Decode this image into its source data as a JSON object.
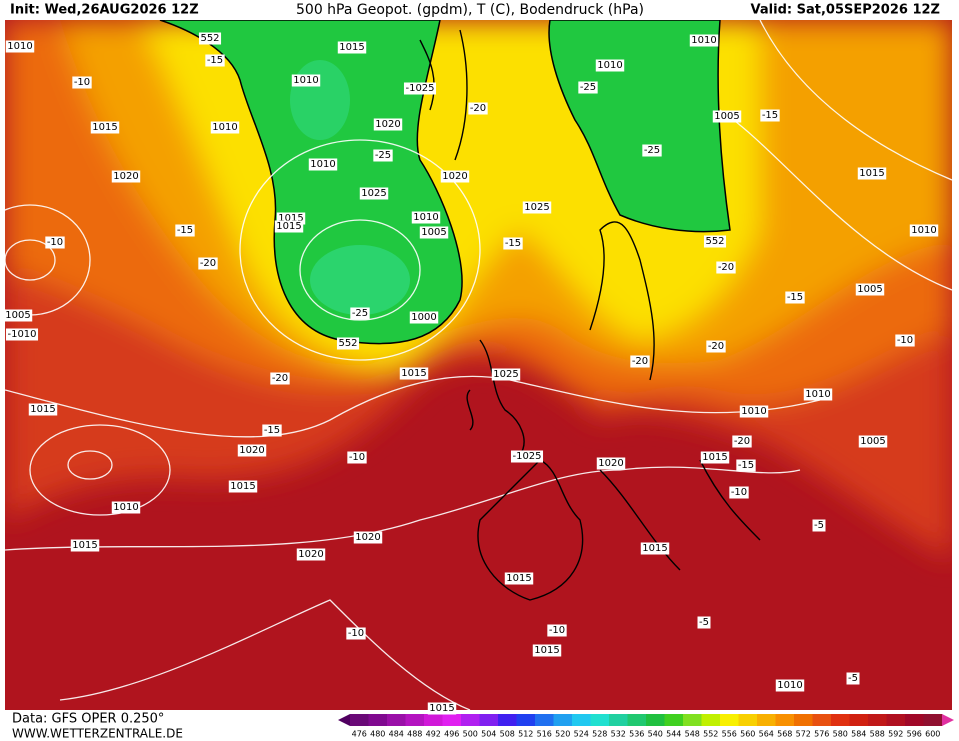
{
  "header": {
    "init": "Init: Wed,26AUG2026 12Z",
    "title": "500 hPa Geopot. (gpdm), T (C), Bodendruck (hPa)",
    "valid": "Valid: Sat,05SEP2026 12Z"
  },
  "footer": {
    "data": "Data: GFS OPER 0.250°",
    "site": "WWW.WETTERZENTRALE.DE"
  },
  "colorbar": {
    "labels": [
      "476",
      "480",
      "484",
      "488",
      "492",
      "496",
      "500",
      "504",
      "508",
      "512",
      "516",
      "520",
      "524",
      "528",
      "532",
      "536",
      "540",
      "544",
      "548",
      "552",
      "556",
      "560",
      "564",
      "568",
      "572",
      "576",
      "580",
      "584",
      "588",
      "592",
      "596",
      "600"
    ]
  },
  "map": {
    "labels": [
      "1010",
      "552",
      "-15",
      "1015",
      "1010",
      "-1025",
      "1010",
      "1010",
      "-25",
      "-10",
      "1015",
      "1010",
      "1020",
      "-25",
      "-20",
      "1005",
      "-15",
      "1020",
      "1010",
      "1020",
      "-25",
      "1015",
      "1025",
      "1025",
      "1015",
      "1015",
      "1010",
      "1005",
      "-15",
      "-10",
      "-15",
      "552",
      "1010",
      "-20",
      "-20",
      "-15",
      "1005",
      "1005",
      "-1010",
      "-25",
      "1000",
      "552",
      "-10",
      "-20",
      "-20",
      "1015",
      "1025",
      "-20",
      "1010",
      "1010",
      "1015",
      "-15",
      "-20",
      "1020",
      "1005",
      "-10",
      "-1025",
      "1020",
      "1015",
      "-15",
      "1015",
      "-10",
      "1010",
      "-5",
      "1015",
      "1020",
      "1015",
      "1020",
      "1015",
      "-10",
      "-10",
      "-5",
      "1015",
      "-5",
      "1010",
      "1015"
    ]
  }
}
